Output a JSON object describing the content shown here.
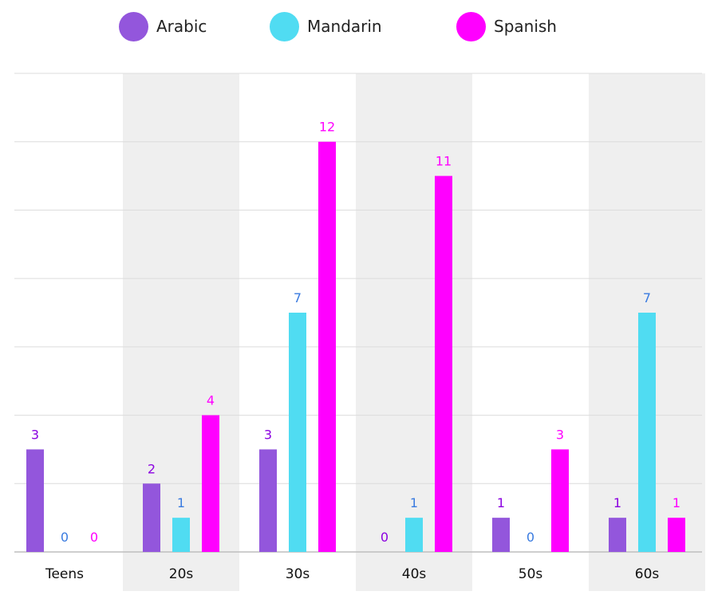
{
  "chart_data": {
    "type": "bar",
    "categories": [
      "Teens",
      "20s",
      "30s",
      "40s",
      "50s",
      "60s"
    ],
    "series": [
      {
        "name": "Arabic",
        "values": [
          3,
          2,
          3,
          0,
          1,
          1
        ],
        "color": "#9356DC",
        "label_color": "#8B00E0"
      },
      {
        "name": "Mandarin",
        "values": [
          0,
          1,
          7,
          1,
          0,
          7
        ],
        "color": "#50DCF2",
        "label_color": "#3A7BE0"
      },
      {
        "name": "Spanish",
        "values": [
          0,
          4,
          12,
          11,
          3,
          1
        ],
        "color": "#FF00FF",
        "label_color": "#FF00FF"
      }
    ],
    "ylim": [
      0,
      14
    ],
    "grid": true,
    "legend_position": "top-center",
    "band_color": "#EFEFEF"
  }
}
